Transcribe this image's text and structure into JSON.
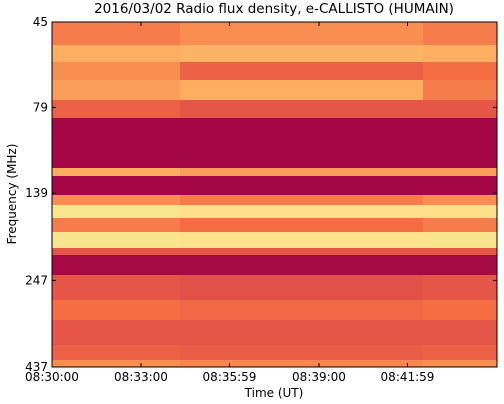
{
  "chart_data": {
    "type": "heatmap",
    "title": "2016/03/02  Radio flux density, e-CALLISTO (HUMAIN)",
    "xlabel": "Time (UT)",
    "ylabel": "Frequency (MHz)",
    "xlim": [
      30600,
      31500
    ],
    "xticks": [
      {
        "value": 30600,
        "label": "08:30:00"
      },
      {
        "value": 30780,
        "label": "08:33:00"
      },
      {
        "value": 30959,
        "label": "08:35:59"
      },
      {
        "value": 31140,
        "label": "08:39:00"
      },
      {
        "value": 31319,
        "label": "08:41:59"
      }
    ],
    "ylim": [
      45,
      437
    ],
    "ylog": true,
    "yinverted": true,
    "yticks": [
      45,
      79,
      139,
      247,
      437
    ],
    "x_edges": [
      30600,
      30859,
      31350,
      31500
    ],
    "y_edges": [
      45,
      52.4,
      58.6,
      65.9,
      75.2,
      84.7,
      117.8,
      124.1,
      140.7,
      150.3,
      163.7,
      179.5,
      199.5,
      208.9,
      238.3,
      281,
      320.6,
      378,
      417,
      437
    ],
    "z": [
      [
        0.45,
        0.5,
        0.45
      ],
      [
        0.6,
        0.62,
        0.6
      ],
      [
        0.5,
        0.35,
        0.4
      ],
      [
        0.55,
        0.6,
        0.45
      ],
      [
        0.35,
        0.3,
        0.3
      ],
      [
        0.02,
        0.02,
        0.02
      ],
      [
        0.6,
        0.55,
        0.55
      ],
      [
        0.02,
        0.02,
        0.02
      ],
      [
        0.5,
        0.45,
        0.5
      ],
      [
        0.85,
        0.8,
        0.8
      ],
      [
        0.45,
        0.4,
        0.45
      ],
      [
        0.85,
        0.82,
        0.85
      ],
      [
        0.3,
        0.3,
        0.3
      ],
      [
        0.03,
        0.03,
        0.03
      ],
      [
        0.3,
        0.28,
        0.3
      ],
      [
        0.4,
        0.38,
        0.4
      ],
      [
        0.3,
        0.3,
        0.3
      ],
      [
        0.35,
        0.33,
        0.35
      ],
      [
        0.5,
        0.48,
        0.5
      ]
    ],
    "colormap": [
      "#9e0142",
      "#d53e4f",
      "#f46d43",
      "#fdae61",
      "#fee08b",
      "#e6f598"
    ]
  }
}
